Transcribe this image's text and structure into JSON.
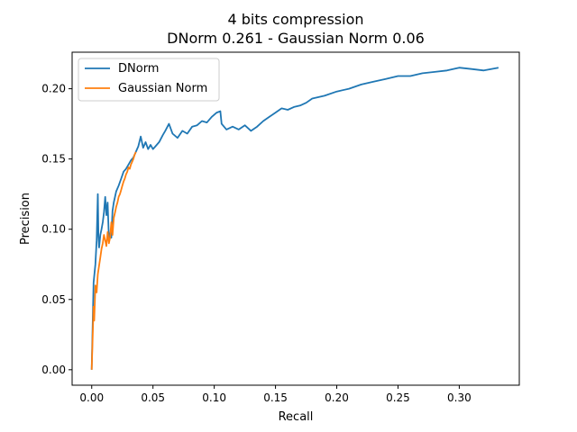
{
  "chart_data": {
    "type": "line",
    "title": "4 bits compression",
    "subtitle": "DNorm 0.261 - Gaussian Norm 0.06",
    "xlabel": "Recall",
    "ylabel": "Precision",
    "xlim": [
      -0.016,
      0.349
    ],
    "ylim": [
      -0.011,
      0.226
    ],
    "xticks": [
      0.0,
      0.05,
      0.1,
      0.15,
      0.2,
      0.25,
      0.3
    ],
    "xtick_labels": [
      "0.00",
      "0.05",
      "0.10",
      "0.15",
      "0.20",
      "0.25",
      "0.30"
    ],
    "yticks": [
      0.0,
      0.05,
      0.1,
      0.15,
      0.2
    ],
    "ytick_labels": [
      "0.00",
      "0.05",
      "0.10",
      "0.15",
      "0.20"
    ],
    "grid": false,
    "legend_position": "top-left",
    "series": [
      {
        "name": "DNorm",
        "color": "#1f77b4",
        "x": [
          0.0,
          0.0015,
          0.003,
          0.004,
          0.005,
          0.0055,
          0.006,
          0.007,
          0.008,
          0.009,
          0.01,
          0.011,
          0.012,
          0.013,
          0.014,
          0.015,
          0.016,
          0.017,
          0.018,
          0.02,
          0.022,
          0.024,
          0.026,
          0.028,
          0.03,
          0.032,
          0.034,
          0.036,
          0.038,
          0.04,
          0.042,
          0.044,
          0.046,
          0.048,
          0.05,
          0.052,
          0.055,
          0.058,
          0.06,
          0.063,
          0.066,
          0.07,
          0.074,
          0.078,
          0.082,
          0.086,
          0.09,
          0.094,
          0.098,
          0.102,
          0.105,
          0.106,
          0.11,
          0.115,
          0.12,
          0.125,
          0.13,
          0.135,
          0.14,
          0.145,
          0.15,
          0.155,
          0.16,
          0.165,
          0.17,
          0.175,
          0.18,
          0.19,
          0.2,
          0.21,
          0.22,
          0.23,
          0.24,
          0.25,
          0.26,
          0.27,
          0.28,
          0.29,
          0.3,
          0.31,
          0.32,
          0.332
        ],
        "y": [
          0.0,
          0.062,
          0.075,
          0.092,
          0.125,
          0.095,
          0.087,
          0.096,
          0.1,
          0.105,
          0.112,
          0.123,
          0.11,
          0.119,
          0.093,
          0.097,
          0.094,
          0.113,
          0.119,
          0.127,
          0.131,
          0.136,
          0.141,
          0.143,
          0.146,
          0.149,
          0.151,
          0.155,
          0.159,
          0.166,
          0.158,
          0.162,
          0.157,
          0.16,
          0.157,
          0.159,
          0.162,
          0.167,
          0.17,
          0.175,
          0.168,
          0.165,
          0.17,
          0.168,
          0.173,
          0.174,
          0.177,
          0.176,
          0.18,
          0.183,
          0.184,
          0.175,
          0.171,
          0.173,
          0.171,
          0.174,
          0.17,
          0.173,
          0.177,
          0.18,
          0.183,
          0.186,
          0.185,
          0.187,
          0.188,
          0.19,
          0.193,
          0.195,
          0.198,
          0.2,
          0.203,
          0.205,
          0.207,
          0.209,
          0.209,
          0.211,
          0.212,
          0.213,
          0.215,
          0.214,
          0.213,
          0.215
        ]
      },
      {
        "name": "Gaussian Norm",
        "color": "#ff7f0e",
        "x": [
          0.0,
          0.001,
          0.0015,
          0.002,
          0.003,
          0.004,
          0.005,
          0.006,
          0.007,
          0.008,
          0.009,
          0.01,
          0.011,
          0.012,
          0.013,
          0.014,
          0.015,
          0.016,
          0.017,
          0.018,
          0.019,
          0.02,
          0.021,
          0.022,
          0.023,
          0.024,
          0.025,
          0.026,
          0.027,
          0.028,
          0.029,
          0.03,
          0.031,
          0.032,
          0.033,
          0.034,
          0.035,
          0.036
        ],
        "y": [
          0.0,
          0.03,
          0.045,
          0.035,
          0.06,
          0.055,
          0.068,
          0.074,
          0.08,
          0.086,
          0.09,
          0.096,
          0.092,
          0.088,
          0.098,
          0.09,
          0.094,
          0.105,
          0.096,
          0.108,
          0.112,
          0.116,
          0.119,
          0.123,
          0.125,
          0.128,
          0.131,
          0.134,
          0.136,
          0.139,
          0.141,
          0.144,
          0.143,
          0.146,
          0.148,
          0.15,
          0.153,
          0.155
        ]
      }
    ]
  }
}
